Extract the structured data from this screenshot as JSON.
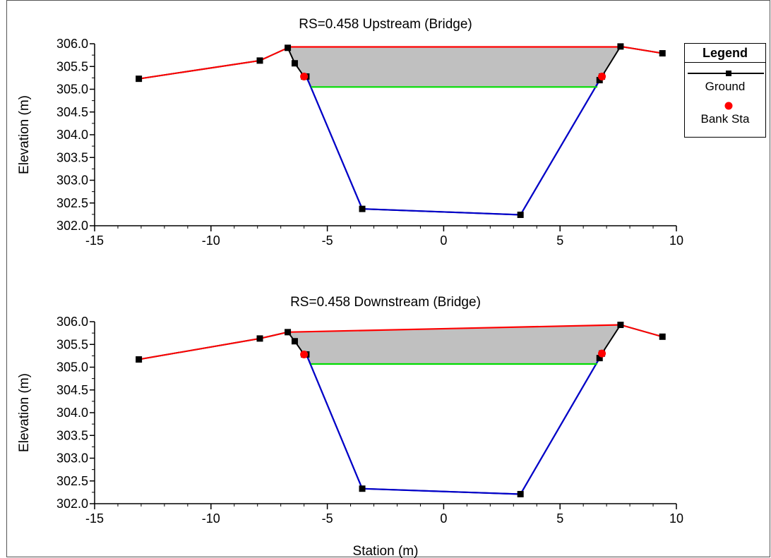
{
  "figure": {
    "xlabel": "Station (m)",
    "ylabel": "Elevation (m)"
  },
  "legend": {
    "title": "Legend",
    "items": [
      {
        "label": "Ground",
        "color": "#000000",
        "marker": "square-line"
      },
      {
        "label": "Bank Sta",
        "color": "#ff0000",
        "marker": "circle"
      }
    ]
  },
  "colors": {
    "ground": "#000000",
    "ineffective": "#ff0000",
    "channel": "#0000cc",
    "bank": "#ff0000",
    "wse": "#00dd00",
    "bridge_fill": "#c0c0c0"
  },
  "chart_data": [
    {
      "type": "line",
      "title": "RS=0.458   Upstream  (Bridge)",
      "xlabel": "",
      "ylabel": "Elevation (m)",
      "xlim": [
        -15,
        10
      ],
      "ylim": [
        302.0,
        306.0
      ],
      "xticks": [
        -15,
        -10,
        -5,
        0,
        5,
        10
      ],
      "yticks": [
        "302.0",
        "302.5",
        "303.0",
        "303.5",
        "304.0",
        "304.5",
        "305.0",
        "305.5",
        "306.0"
      ],
      "ground": {
        "x": [
          -13.1,
          -7.9,
          -6.7,
          -6.4,
          -6.0,
          -5.9,
          -3.5,
          3.3,
          6.7,
          6.8,
          7.6,
          9.4
        ],
        "y": [
          305.23,
          305.63,
          305.91,
          305.57,
          305.28,
          305.28,
          302.37,
          302.24,
          305.2,
          305.28,
          305.94,
          305.79
        ]
      },
      "left_overbank": {
        "x": [
          -13.1,
          -7.9,
          -6.7
        ],
        "y": [
          305.23,
          305.63,
          305.91
        ]
      },
      "main_channel": {
        "x": [
          -5.9,
          -3.5,
          3.3,
          6.7
        ],
        "y": [
          305.28,
          302.37,
          302.24,
          305.2
        ]
      },
      "right_overbank": {
        "x": [
          7.6,
          9.4
        ],
        "y": [
          305.94,
          305.79
        ]
      },
      "bank_stations": {
        "x": [
          -6.0,
          6.8
        ],
        "y": [
          305.28,
          305.28
        ]
      },
      "deck_high_chord": {
        "x": [
          -6.7,
          7.6
        ],
        "y": [
          305.93,
          305.93
        ]
      },
      "deck_low_chord": {
        "x": [
          -5.7,
          6.6
        ],
        "y": [
          305.05,
          305.05
        ]
      },
      "deck_fill": {
        "x": [
          -6.7,
          7.6,
          6.8,
          6.6,
          -5.7,
          -6.0,
          -6.4
        ],
        "y": [
          305.93,
          305.93,
          305.28,
          305.05,
          305.05,
          305.28,
          305.57
        ]
      }
    },
    {
      "type": "line",
      "title": "RS=0.458   Downstream  (Bridge)",
      "xlabel": "Station (m)",
      "ylabel": "Elevation (m)",
      "xlim": [
        -15,
        10
      ],
      "ylim": [
        302.0,
        306.0
      ],
      "xticks": [
        -15,
        -10,
        -5,
        0,
        5,
        10
      ],
      "yticks": [
        "302.0",
        "302.5",
        "303.0",
        "303.5",
        "304.0",
        "304.5",
        "305.0",
        "305.5",
        "306.0"
      ],
      "ground": {
        "x": [
          -13.1,
          -7.9,
          -6.7,
          -6.4,
          -6.0,
          -5.9,
          -3.5,
          3.3,
          6.7,
          6.8,
          7.6,
          9.4
        ],
        "y": [
          305.17,
          305.63,
          305.77,
          305.57,
          305.28,
          305.28,
          302.33,
          302.21,
          305.2,
          305.3,
          305.93,
          305.67
        ]
      },
      "left_overbank": {
        "x": [
          -13.1,
          -7.9,
          -6.7
        ],
        "y": [
          305.17,
          305.63,
          305.77
        ]
      },
      "main_channel": {
        "x": [
          -5.9,
          -3.5,
          3.3,
          6.7
        ],
        "y": [
          305.28,
          302.33,
          302.21,
          305.2
        ]
      },
      "right_overbank": {
        "x": [
          7.6,
          9.4
        ],
        "y": [
          305.93,
          305.67
        ]
      },
      "bank_stations": {
        "x": [
          -6.0,
          6.8
        ],
        "y": [
          305.28,
          305.3
        ]
      },
      "deck_high_chord": {
        "x": [
          -6.7,
          7.6
        ],
        "y": [
          305.77,
          305.93
        ]
      },
      "deck_low_chord": {
        "x": [
          -5.7,
          6.6
        ],
        "y": [
          305.07,
          305.07
        ]
      },
      "deck_fill": {
        "x": [
          -6.7,
          7.6,
          6.8,
          6.6,
          -5.7,
          -6.0,
          -6.4
        ],
        "y": [
          305.77,
          305.93,
          305.3,
          305.07,
          305.07,
          305.28,
          305.57
        ]
      }
    }
  ]
}
